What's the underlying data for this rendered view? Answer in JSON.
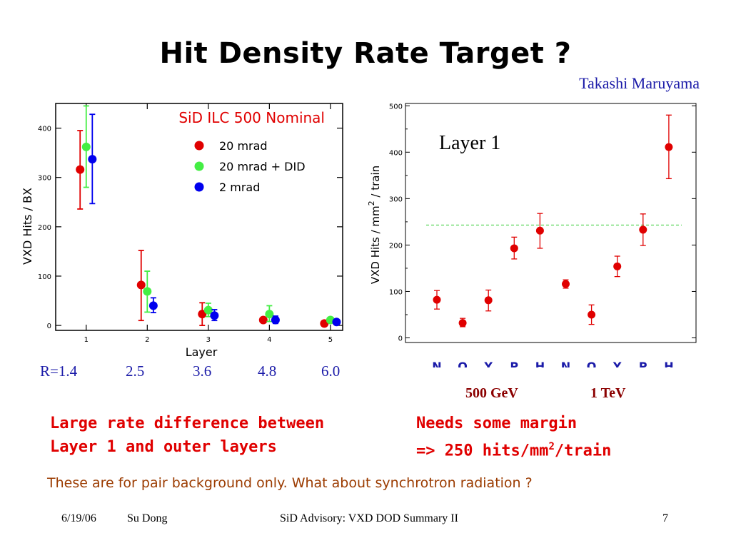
{
  "slide": {
    "title": "Hit Density Rate Target ?",
    "author": "Takashi Maruyama",
    "radii": [
      "R=1.4",
      "2.5",
      "3.6",
      "4.8",
      "6.0"
    ],
    "energy_labels": [
      "500 GeV",
      "1 TeV"
    ],
    "note_left": [
      "Large rate difference between",
      "Layer 1 and outer layers"
    ],
    "note_right_line1": "Needs some margin",
    "note_right_line2_pre": "=> 250 hits/mm",
    "note_right_line2_sup": "2",
    "note_right_line2_post": "/train",
    "bottom_note": "These are for pair background only. What about synchrotron radiation ?",
    "footer": {
      "date": "6/19/06",
      "presenter": "Su Dong",
      "center": "SiD Advisory: VXD DOD Summary II",
      "page": "7"
    }
  },
  "colors": {
    "red": "#e00000",
    "green": "#44ee44",
    "blue": "#0000ee",
    "author": "#1a1aa8",
    "energy": "#8b0000",
    "bottom_note": "#9b3b00"
  },
  "chart_data": [
    {
      "type": "scatter",
      "title": "SiD  ILC 500 Nominal",
      "xlabel": "Layer",
      "ylabel": "VXD Hits / BX",
      "xlim": [
        0.5,
        5.2
      ],
      "ylim": [
        -10,
        450
      ],
      "xticks": [
        1,
        2,
        3,
        4,
        5
      ],
      "yticks": [
        0,
        100,
        200,
        300,
        400
      ],
      "legend_position": "top-right",
      "series": [
        {
          "name": "20 mrad",
          "color": "#e00000",
          "offset": -0.1,
          "points": [
            {
              "x": 1,
              "y": 316,
              "lo": 236,
              "hi": 395
            },
            {
              "x": 2,
              "y": 82,
              "lo": 10,
              "hi": 152
            },
            {
              "x": 3,
              "y": 23,
              "lo": 0,
              "hi": 46
            },
            {
              "x": 4,
              "y": 11,
              "lo": 8,
              "hi": 14
            },
            {
              "x": 5,
              "y": 4,
              "lo": 1,
              "hi": 7
            }
          ]
        },
        {
          "name": "20 mrad + DID",
          "color": "#44ee44",
          "offset": 0,
          "points": [
            {
              "x": 1,
              "y": 362,
              "lo": 280,
              "hi": 445
            },
            {
              "x": 2,
              "y": 69,
              "lo": 27,
              "hi": 110
            },
            {
              "x": 3,
              "y": 31,
              "lo": 18,
              "hi": 45
            },
            {
              "x": 4,
              "y": 23,
              "lo": 8,
              "hi": 40
            },
            {
              "x": 5,
              "y": 11,
              "lo": 6,
              "hi": 16
            }
          ]
        },
        {
          "name": "2 mrad",
          "color": "#0000ee",
          "offset": 0.1,
          "points": [
            {
              "x": 1,
              "y": 337,
              "lo": 247,
              "hi": 428
            },
            {
              "x": 2,
              "y": 40,
              "lo": 26,
              "hi": 56
            },
            {
              "x": 3,
              "y": 20,
              "lo": 10,
              "hi": 32
            },
            {
              "x": 4,
              "y": 11,
              "lo": 4,
              "hi": 19
            },
            {
              "x": 5,
              "y": 7,
              "lo": 3,
              "hi": 11
            }
          ]
        }
      ]
    },
    {
      "type": "scatter",
      "title": "Layer 1",
      "xlabel": "",
      "ylabel": "VXD Hits / mm",
      "ylabel_sup": "2",
      "ylabel_post": " / train",
      "ylim": [
        -10,
        505
      ],
      "yticks": [
        0,
        100,
        200,
        300,
        400,
        500
      ],
      "categories": [
        "N",
        "Q",
        "Y",
        "P",
        "H",
        "N",
        "Q",
        "Y",
        "P",
        "H"
      ],
      "reference_line": 243,
      "points": [
        {
          "x": 1,
          "y": 82,
          "lo": 62,
          "hi": 102
        },
        {
          "x": 2,
          "y": 32,
          "lo": 24,
          "hi": 42
        },
        {
          "x": 3,
          "y": 81,
          "lo": 58,
          "hi": 103
        },
        {
          "x": 4,
          "y": 193,
          "lo": 170,
          "hi": 217
        },
        {
          "x": 5,
          "y": 231,
          "lo": 193,
          "hi": 268
        },
        {
          "x": 6,
          "y": 116,
          "lo": 107,
          "hi": 125
        },
        {
          "x": 7,
          "y": 50,
          "lo": 29,
          "hi": 71
        },
        {
          "x": 8,
          "y": 154,
          "lo": 132,
          "hi": 176
        },
        {
          "x": 9,
          "y": 233,
          "lo": 199,
          "hi": 267
        },
        {
          "x": 10,
          "y": 411,
          "lo": 343,
          "hi": 480
        }
      ]
    }
  ]
}
